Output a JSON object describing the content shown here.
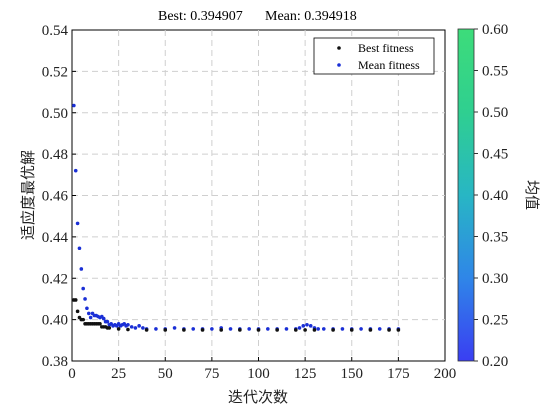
{
  "chart_data": {
    "type": "scatter",
    "title_best": "Best: 0.394907",
    "title_mean": "Mean: 0.394918",
    "xlabel": "迭代次数",
    "ylabel": "适应度最优解",
    "xlim": [
      0,
      200
    ],
    "ylim": [
      0.38,
      0.54
    ],
    "xticks": [
      0,
      25,
      50,
      75,
      100,
      125,
      150,
      175,
      200
    ],
    "yticks": [
      0.38,
      0.4,
      0.42,
      0.44,
      0.46,
      0.48,
      0.5,
      0.52,
      0.54
    ],
    "grid": true,
    "legend_position": "top-right",
    "series": [
      {
        "name": "Best fitness",
        "color": "#111111",
        "x": [
          1,
          2,
          3,
          4,
          5,
          6,
          7,
          8,
          9,
          10,
          11,
          12,
          13,
          14,
          15,
          16,
          17,
          18,
          19,
          20,
          25,
          30,
          40,
          50,
          60,
          70,
          80,
          90,
          100,
          110,
          120,
          125,
          130,
          140,
          150,
          160,
          170,
          175
        ],
        "y": [
          0.4095,
          0.4095,
          0.404,
          0.401,
          0.4,
          0.4,
          0.398,
          0.398,
          0.398,
          0.398,
          0.398,
          0.398,
          0.398,
          0.398,
          0.398,
          0.3965,
          0.3965,
          0.3965,
          0.396,
          0.396,
          0.3955,
          0.3952,
          0.395,
          0.395,
          0.395,
          0.395,
          0.395,
          0.395,
          0.395,
          0.395,
          0.395,
          0.395,
          0.395,
          0.395,
          0.395,
          0.395,
          0.395,
          0.395
        ]
      },
      {
        "name": "Mean fitness",
        "color": "#1a2fd6",
        "x": [
          1,
          2,
          3,
          4,
          5,
          6,
          7,
          8,
          9,
          10,
          11,
          12,
          13,
          14,
          15,
          16,
          17,
          18,
          19,
          20,
          21,
          22,
          23,
          24,
          25,
          26,
          27,
          28,
          29,
          30,
          32,
          34,
          36,
          38,
          40,
          45,
          50,
          55,
          60,
          65,
          70,
          75,
          80,
          85,
          90,
          95,
          100,
          105,
          110,
          115,
          120,
          122,
          124,
          126,
          128,
          130,
          132,
          135,
          140,
          145,
          150,
          155,
          160,
          165,
          170,
          175
        ],
        "y": [
          0.5035,
          0.472,
          0.4465,
          0.4345,
          0.4245,
          0.415,
          0.41,
          0.4055,
          0.403,
          0.401,
          0.403,
          0.402,
          0.402,
          0.4015,
          0.401,
          0.4015,
          0.4005,
          0.399,
          0.399,
          0.3975,
          0.398,
          0.397,
          0.3975,
          0.397,
          0.398,
          0.397,
          0.3975,
          0.398,
          0.397,
          0.3975,
          0.3965,
          0.396,
          0.397,
          0.396,
          0.3955,
          0.3955,
          0.3955,
          0.396,
          0.3955,
          0.3955,
          0.3955,
          0.3955,
          0.396,
          0.3955,
          0.3955,
          0.3955,
          0.3955,
          0.3955,
          0.3955,
          0.3955,
          0.3955,
          0.396,
          0.397,
          0.3975,
          0.397,
          0.396,
          0.3955,
          0.3955,
          0.3955,
          0.3955,
          0.3955,
          0.3955,
          0.3955,
          0.3955,
          0.3955,
          0.3955
        ]
      }
    ],
    "colorbar": {
      "label": "均值",
      "min": 0.2,
      "max": 0.6,
      "ticks": [
        0.2,
        0.25,
        0.3,
        0.35,
        0.4,
        0.45,
        0.5,
        0.55,
        0.6
      ],
      "colormap": [
        "#3a3ef2",
        "#2f86e8",
        "#28b6c4",
        "#2fcf90",
        "#3ddc7a"
      ]
    }
  }
}
